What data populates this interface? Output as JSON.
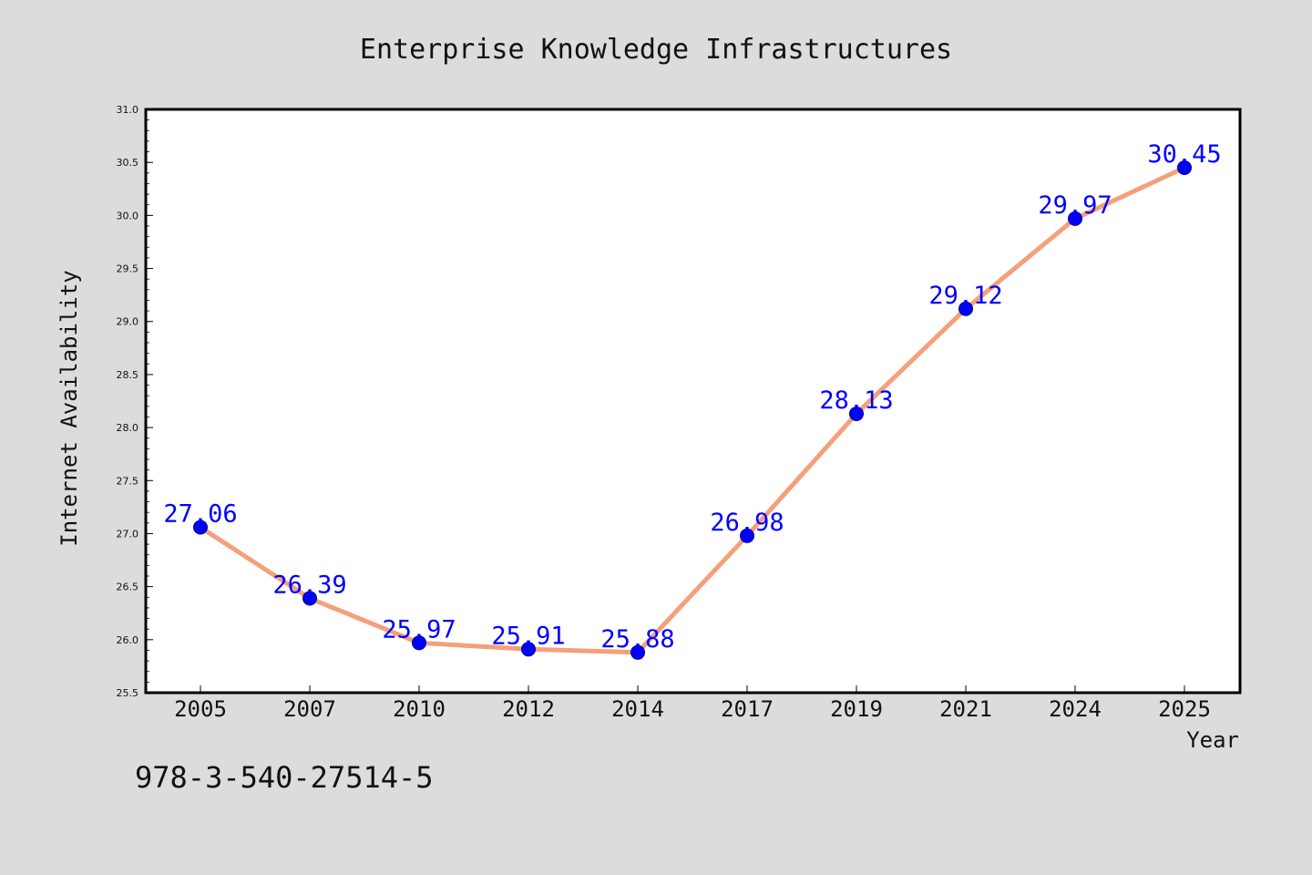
{
  "chart_data": {
    "type": "line",
    "title": "Enterprise Knowledge Infrastructures",
    "xlabel": "Year",
    "ylabel": "Internet Availability",
    "categories": [
      "2005",
      "2007",
      "2010",
      "2012",
      "2014",
      "2017",
      "2019",
      "2021",
      "2024",
      "2025"
    ],
    "series": [
      {
        "values": [
          27.06,
          26.39,
          25.97,
          25.91,
          25.88,
          26.98,
          28.13,
          29.12,
          29.97,
          30.45
        ],
        "line_color": "#f4a07a",
        "marker_color": "#0000ff",
        "label_color": "#0000ff"
      }
    ],
    "ylim": [
      25.5,
      31.0
    ],
    "yticks": [
      "25.5",
      "26.0",
      "26.5",
      "27.0",
      "27.5",
      "28.0",
      "28.5",
      "29.0",
      "29.5",
      "30.0",
      "30.5",
      "31.0"
    ],
    "data_labels": [
      "27.06",
      "26.39",
      "25.97",
      "25.91",
      "25.88",
      "26.98",
      "28.13",
      "29.12",
      "29.97",
      "30.45"
    ],
    "grid": false
  },
  "footer_text": "978-3-540-27514-5",
  "colors": {
    "background": "#dcdcdc",
    "plot_background": "#ffffff"
  }
}
